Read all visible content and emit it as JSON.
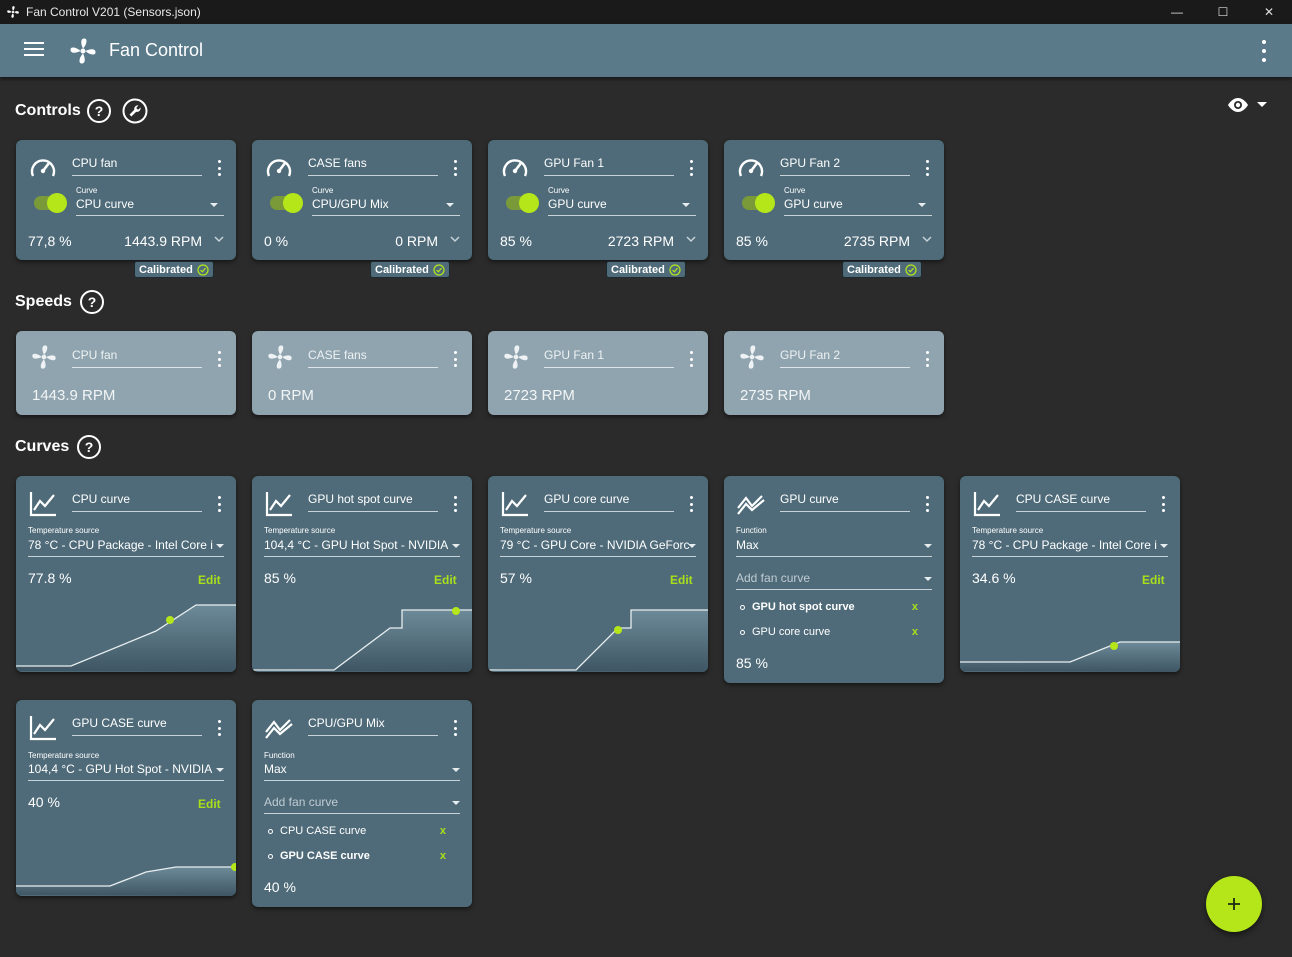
{
  "window": {
    "title": "Fan Control V201 (Sensors.json)",
    "minimize": "—",
    "maximize": "☐",
    "close": "✕"
  },
  "header": {
    "title": "Fan Control"
  },
  "sections": {
    "controls": "Controls",
    "speeds": "Speeds",
    "curves": "Curves",
    "help": "?"
  },
  "controls": [
    {
      "name": "CPU fan",
      "field_label": "Curve",
      "curve": "CPU curve",
      "percent": "77,8 %",
      "rpm": "1443.9 RPM",
      "badge": "Calibrated",
      "enabled": true
    },
    {
      "name": "CASE fans",
      "field_label": "Curve",
      "curve": "CPU/GPU Mix",
      "percent": "0 %",
      "rpm": "0 RPM",
      "badge": "Calibrated",
      "enabled": true
    },
    {
      "name": "GPU Fan 1",
      "field_label": "Curve",
      "curve": "GPU curve",
      "percent": "85 %",
      "rpm": "2723 RPM",
      "badge": "Calibrated",
      "enabled": true
    },
    {
      "name": "GPU Fan 2",
      "field_label": "Curve",
      "curve": "GPU curve",
      "percent": "85 %",
      "rpm": "2735 RPM",
      "badge": "Calibrated",
      "enabled": true
    }
  ],
  "speeds": [
    {
      "name": "CPU fan",
      "rpm": "1443.9 RPM"
    },
    {
      "name": "CASE fans",
      "rpm": "0 RPM"
    },
    {
      "name": "GPU Fan 1",
      "rpm": "2723 RPM"
    },
    {
      "name": "GPU Fan 2",
      "rpm": "2735 RPM"
    }
  ],
  "curves": {
    "cpu_curve": {
      "name": "CPU curve",
      "field_label": "Temperature source",
      "source": "78 °C - CPU Package - Intel Core i",
      "percent": "77.8 %",
      "edit": "Edit"
    },
    "gpu_hot_spot": {
      "name": "GPU hot spot curve",
      "field_label": "Temperature source",
      "source": "104,4 °C - GPU Hot Spot - NVIDIA",
      "percent": "85 %",
      "edit": "Edit"
    },
    "gpu_core": {
      "name": "GPU core curve",
      "field_label": "Temperature source",
      "source": "79 °C - GPU Core - NVIDIA GeForc",
      "percent": "57 %",
      "edit": "Edit"
    },
    "gpu_curve": {
      "name": "GPU curve",
      "field_label": "Function",
      "function": "Max",
      "add_placeholder": "Add fan curve",
      "items": [
        {
          "label": "GPU hot spot curve",
          "remove": "x",
          "bold": true
        },
        {
          "label": "GPU core curve",
          "remove": "x",
          "bold": false
        }
      ],
      "percent": "85 %"
    },
    "cpu_case": {
      "name": "CPU CASE curve",
      "field_label": "Temperature source",
      "source": "78 °C - CPU Package - Intel Core i",
      "percent": "34.6 %",
      "edit": "Edit"
    },
    "gpu_case": {
      "name": "GPU CASE curve",
      "field_label": "Temperature source",
      "source": "104,4 °C - GPU Hot Spot - NVIDIA",
      "percent": "40 %",
      "edit": "Edit"
    },
    "cpu_gpu_mix": {
      "name": "CPU/GPU Mix",
      "field_label": "Function",
      "function": "Max",
      "add_placeholder": "Add fan curve",
      "items": [
        {
          "label": "CPU CASE curve",
          "remove": "x",
          "bold": false
        },
        {
          "label": "GPU CASE curve",
          "remove": "x",
          "bold": true
        }
      ],
      "percent": "40 %"
    }
  },
  "fab": {
    "label": "+"
  },
  "colors": {
    "accent": "#b4e61a",
    "card": "#4f6b79",
    "speed_card": "#8fa4ae",
    "appbar": "#5a7a8a",
    "background": "#2b2b2b"
  },
  "icons": {
    "app": "fan-icon",
    "menu": "hamburger-menu-icon",
    "help": "question-icon",
    "tools": "wrench-icon",
    "visibility": "eye-icon",
    "control": "speedometer-icon",
    "speed": "fan-icon",
    "graph_curve": "line-graph-icon",
    "mix_curve": "mix-graph-icon",
    "add": "plus-icon"
  }
}
